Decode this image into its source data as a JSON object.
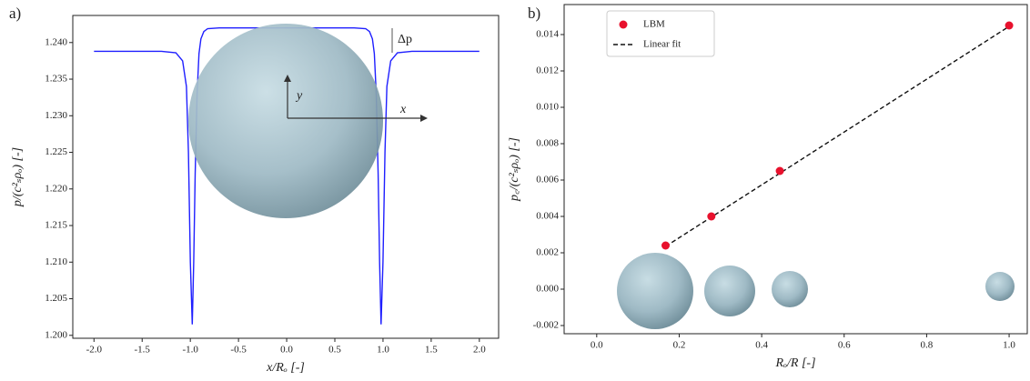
{
  "chart_data": [
    {
      "type": "line",
      "panel": "a)",
      "xlabel": "x/Rₒ [-]",
      "ylabel": "p/(c²ₛρₒ) [-]",
      "annotations": [
        "Δp",
        "x",
        "y"
      ],
      "x": [
        -2.0,
        -1.3,
        -1.15,
        -1.08,
        -1.04,
        -1.02,
        -1.0,
        -0.98,
        -0.965,
        -0.95,
        -0.93,
        -0.91,
        -0.89,
        -0.86,
        -0.82,
        -0.7,
        0.0,
        0.7,
        0.82,
        0.86,
        0.89,
        0.91,
        0.93,
        0.95,
        0.965,
        0.98,
        1.0,
        1.02,
        1.04,
        1.08,
        1.15,
        1.3,
        2.0
      ],
      "series": [
        {
          "color": "#1f1fff",
          "values": [
            1.2388,
            1.2388,
            1.2386,
            1.2375,
            1.234,
            1.225,
            1.21,
            1.2015,
            1.21,
            1.222,
            1.233,
            1.2385,
            1.2405,
            1.2415,
            1.2419,
            1.242,
            1.242,
            1.242,
            1.2419,
            1.2415,
            1.2405,
            1.2385,
            1.233,
            1.222,
            1.21,
            1.2015,
            1.21,
            1.225,
            1.234,
            1.2375,
            1.2386,
            1.2388,
            1.2388
          ]
        }
      ],
      "xlim": [
        -2.22,
        2.2
      ],
      "xticks": [
        {
          "value": -2,
          "label": "-2.0"
        },
        -1.5,
        {
          "value": -1,
          "label": "-1.0"
        },
        -0.5,
        {
          "value": 0,
          "label": "0.0"
        },
        0.5,
        {
          "value": 1,
          "label": "1.0"
        },
        1.5,
        {
          "value": 2,
          "label": "2.0"
        }
      ],
      "ylim": [
        1.1996,
        1.2437
      ],
      "yticks": [
        {
          "value": 1.2,
          "label": "1.200"
        },
        1.205,
        {
          "value": 1.21,
          "label": "1.210"
        },
        1.215,
        {
          "value": 1.22,
          "label": "1.220"
        },
        1.225,
        {
          "value": 1.23,
          "label": "1.230"
        },
        1.235,
        {
          "value": 1.24,
          "label": "1.240"
        }
      ]
    },
    {
      "type": "scatter",
      "panel": "b)",
      "xlabel": "Rₒ/R [-]",
      "ylabel": "p꜀/(c²ₛρₒ) [-]",
      "legend": "upper left",
      "series": [
        {
          "name": "LBM",
          "type": "scatter",
          "color": "#e8112d",
          "x": [
            0.167,
            0.278,
            0.444,
            1.0
          ],
          "values": [
            0.0024,
            0.004,
            0.0065,
            0.0145
          ]
        },
        {
          "name": "Linear fit",
          "type": "line",
          "dashed": true,
          "color": "#111111",
          "x": [
            0.167,
            1.0
          ],
          "values": [
            0.00235,
            0.01445
          ]
        }
      ],
      "xlim": [
        -0.079,
        1.044
      ],
      "xticks": [
        {
          "value": 0,
          "label": "0.0"
        },
        0.2,
        0.4,
        0.6,
        0.8,
        {
          "value": 1,
          "label": "1.0"
        }
      ],
      "ylim": [
        -0.00245,
        0.01565
      ],
      "yticks": [
        -0.002,
        {
          "value": 0,
          "label": "0.000"
        },
        0.002,
        0.004,
        0.006,
        0.008,
        {
          "value": 0.01,
          "label": "0.010"
        },
        0.012,
        0.014
      ]
    }
  ]
}
